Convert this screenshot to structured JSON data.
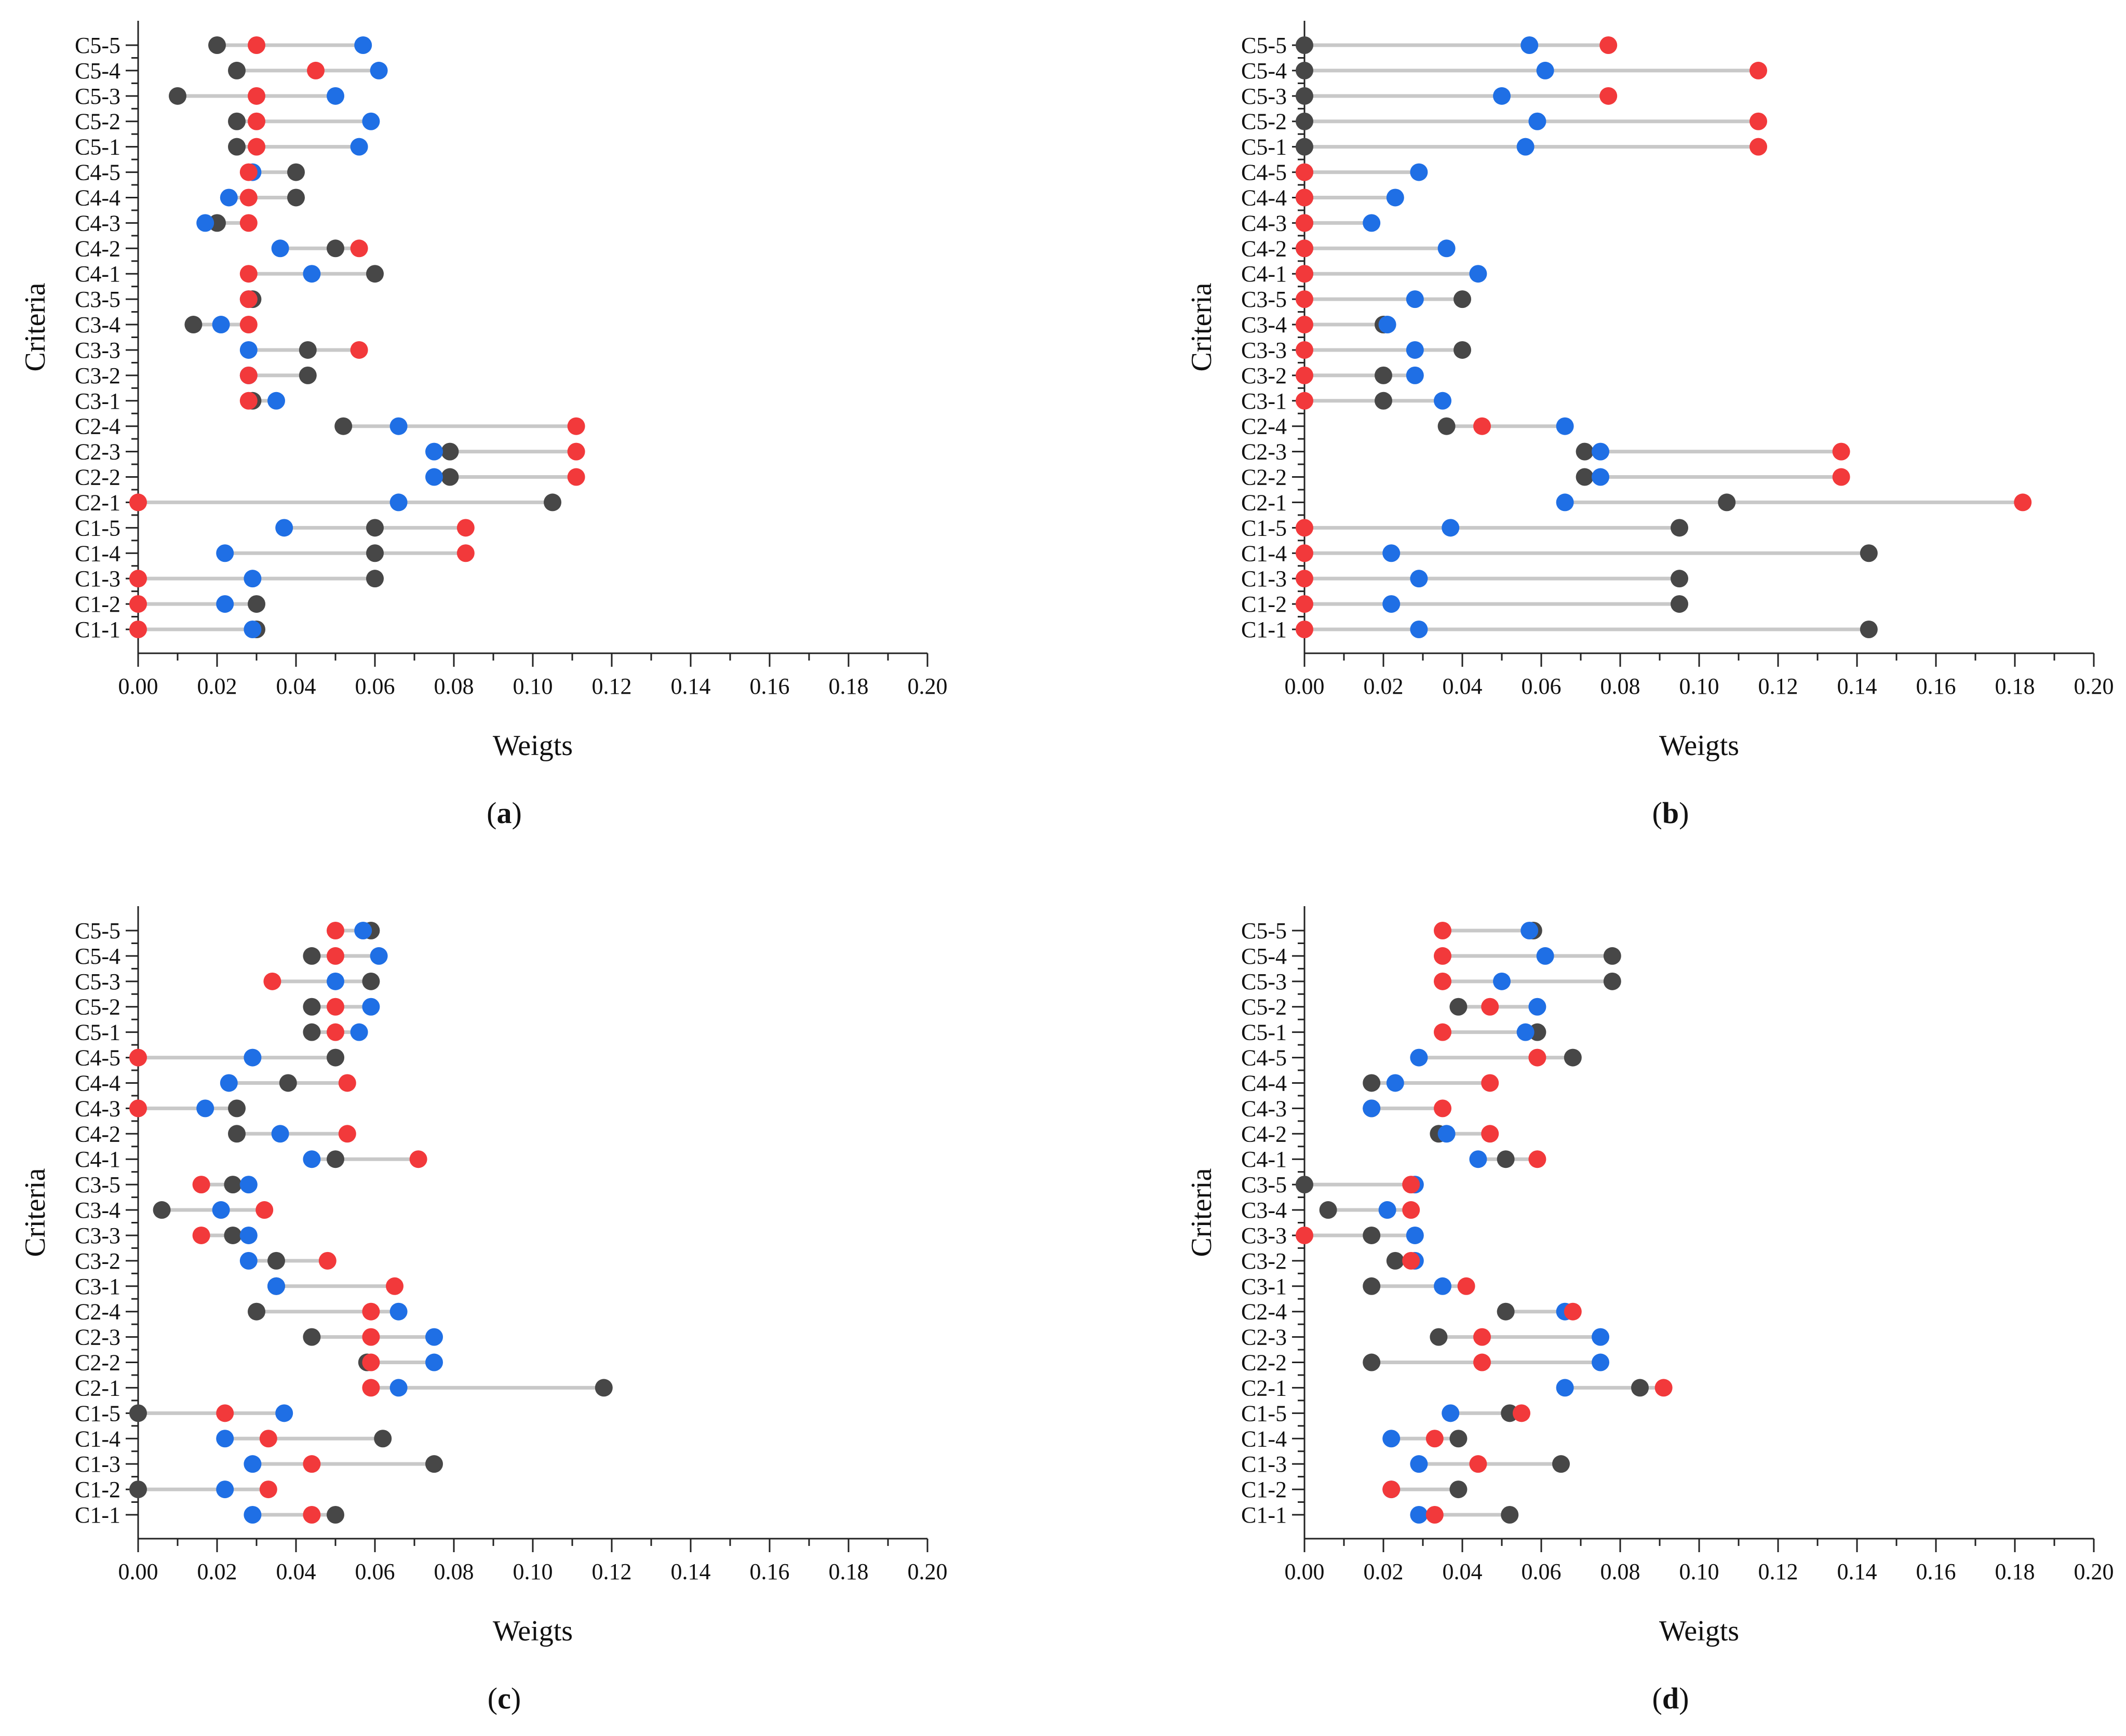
{
  "chart_data": [
    {
      "type": "dumbbell",
      "panel": "a",
      "caption_open": "(",
      "caption_letter": "a",
      "caption_close": ")",
      "xlabel": "Weigts",
      "ylabel": "Criteria",
      "xlim": [
        0,
        0.2
      ],
      "xticks": [
        "0.00",
        "0.02",
        "0.04",
        "0.06",
        "0.08",
        "0.10",
        "0.12",
        "0.14",
        "0.16",
        "0.18",
        "0.20"
      ],
      "categories": [
        "C1-1",
        "C1-2",
        "C1-3",
        "C1-4",
        "C1-5",
        "C2-1",
        "C2-2",
        "C2-3",
        "C2-4",
        "C3-1",
        "C3-2",
        "C3-3",
        "C3-4",
        "C3-5",
        "C4-1",
        "C4-2",
        "C4-3",
        "C4-4",
        "C4-5",
        "C5-1",
        "C5-2",
        "C5-3",
        "C5-4",
        "C5-5"
      ],
      "series": [
        {
          "name": "dark",
          "color": "#474747",
          "values": [
            0.03,
            0.03,
            0.06,
            0.06,
            0.06,
            0.105,
            0.079,
            0.079,
            0.052,
            0.029,
            0.043,
            0.043,
            0.014,
            0.029,
            0.06,
            0.05,
            0.02,
            0.04,
            0.04,
            0.025,
            0.025,
            0.01,
            0.025,
            0.02
          ]
        },
        {
          "name": "blue",
          "color": "#1f6fe5",
          "values": [
            0.029,
            0.022,
            0.029,
            0.022,
            0.037,
            0.066,
            0.075,
            0.075,
            0.066,
            0.035,
            0.028,
            0.028,
            0.021,
            0.028,
            0.044,
            0.036,
            0.017,
            0.023,
            0.029,
            0.056,
            0.059,
            0.05,
            0.061,
            0.057
          ]
        },
        {
          "name": "red",
          "color": "#f2393b",
          "values": [
            0.0,
            0.0,
            0.0,
            0.083,
            0.083,
            0.0,
            0.111,
            0.111,
            0.111,
            0.028,
            0.028,
            0.056,
            0.028,
            0.028,
            0.028,
            0.056,
            0.028,
            0.028,
            0.028,
            0.03,
            0.03,
            0.03,
            0.045,
            0.03
          ]
        }
      ]
    },
    {
      "type": "dumbbell",
      "panel": "b",
      "caption_open": "(",
      "caption_letter": "b",
      "caption_close": ")",
      "xlabel": "Weigts",
      "ylabel": "Criteria",
      "xlim": [
        0,
        0.2
      ],
      "xticks": [
        "0.00",
        "0.02",
        "0.04",
        "0.06",
        "0.08",
        "0.10",
        "0.12",
        "0.14",
        "0.16",
        "0.18",
        "0.20"
      ],
      "categories": [
        "C1-1",
        "C1-2",
        "C1-3",
        "C1-4",
        "C1-5",
        "C2-1",
        "C2-2",
        "C2-3",
        "C2-4",
        "C3-1",
        "C3-2",
        "C3-3",
        "C3-4",
        "C3-5",
        "C4-1",
        "C4-2",
        "C4-3",
        "C4-4",
        "C4-5",
        "C5-1",
        "C5-2",
        "C5-3",
        "C5-4",
        "C5-5"
      ],
      "series": [
        {
          "name": "dark",
          "color": "#474747",
          "values": [
            0.143,
            0.095,
            0.095,
            0.143,
            0.095,
            0.107,
            0.071,
            0.071,
            0.036,
            0.02,
            0.02,
            0.04,
            0.02,
            0.04,
            0.0,
            0.0,
            0.0,
            0.0,
            0.0,
            0.0,
            0.0,
            0.0,
            0.0,
            0.0
          ]
        },
        {
          "name": "blue",
          "color": "#1f6fe5",
          "values": [
            0.029,
            0.022,
            0.029,
            0.022,
            0.037,
            0.066,
            0.075,
            0.075,
            0.066,
            0.035,
            0.028,
            0.028,
            0.021,
            0.028,
            0.044,
            0.036,
            0.017,
            0.023,
            0.029,
            0.056,
            0.059,
            0.05,
            0.061,
            0.057
          ]
        },
        {
          "name": "red",
          "color": "#f2393b",
          "values": [
            0.0,
            0.0,
            0.0,
            0.0,
            0.0,
            0.182,
            0.136,
            0.136,
            0.045,
            0.0,
            0.0,
            0.0,
            0.0,
            0.0,
            0.0,
            0.0,
            0.0,
            0.0,
            0.0,
            0.115,
            0.115,
            0.077,
            0.115,
            0.077
          ]
        }
      ]
    },
    {
      "type": "dumbbell",
      "panel": "c",
      "caption_open": "(",
      "caption_letter": "c",
      "caption_close": ")",
      "xlabel": "Weigts",
      "ylabel": "Criteria",
      "xlim": [
        0,
        0.2
      ],
      "xticks": [
        "0.00",
        "0.02",
        "0.04",
        "0.06",
        "0.08",
        "0.10",
        "0.12",
        "0.14",
        "0.16",
        "0.18",
        "0.20"
      ],
      "categories": [
        "C1-1",
        "C1-2",
        "C1-3",
        "C1-4",
        "C1-5",
        "C2-1",
        "C2-2",
        "C2-3",
        "C2-4",
        "C3-1",
        "C3-2",
        "C3-3",
        "C3-4",
        "C3-5",
        "C4-1",
        "C4-2",
        "C4-3",
        "C4-4",
        "C4-5",
        "C5-1",
        "C5-2",
        "C5-3",
        "C5-4",
        "C5-5"
      ],
      "series": [
        {
          "name": "dark",
          "color": "#474747",
          "values": [
            0.05,
            0.0,
            0.075,
            0.062,
            0.0,
            0.118,
            0.058,
            0.044,
            0.03,
            0.035,
            0.035,
            0.024,
            0.006,
            0.024,
            0.05,
            0.025,
            0.025,
            0.038,
            0.05,
            0.044,
            0.044,
            0.059,
            0.044,
            0.059
          ]
        },
        {
          "name": "blue",
          "color": "#1f6fe5",
          "values": [
            0.029,
            0.022,
            0.029,
            0.022,
            0.037,
            0.066,
            0.075,
            0.075,
            0.066,
            0.035,
            0.028,
            0.028,
            0.021,
            0.028,
            0.044,
            0.036,
            0.017,
            0.023,
            0.029,
            0.056,
            0.059,
            0.05,
            0.061,
            0.057
          ]
        },
        {
          "name": "red",
          "color": "#f2393b",
          "values": [
            0.044,
            0.033,
            0.044,
            0.033,
            0.022,
            0.059,
            0.059,
            0.059,
            0.059,
            0.065,
            0.048,
            0.016,
            0.032,
            0.016,
            0.071,
            0.053,
            0.0,
            0.053,
            0.0,
            0.05,
            0.05,
            0.034,
            0.05,
            0.05
          ]
        }
      ]
    },
    {
      "type": "dumbbell",
      "panel": "d",
      "caption_open": "(",
      "caption_letter": "d",
      "caption_close": ")",
      "xlabel": "Weigts",
      "ylabel": "Criteria",
      "xlim": [
        0,
        0.2
      ],
      "xticks": [
        "0.00",
        "0.02",
        "0.04",
        "0.06",
        "0.08",
        "0.10",
        "0.12",
        "0.14",
        "0.16",
        "0.18",
        "0.20"
      ],
      "categories": [
        "C1-1",
        "C1-2",
        "C1-3",
        "C1-4",
        "C1-5",
        "C2-1",
        "C2-2",
        "C2-3",
        "C2-4",
        "C3-1",
        "C3-2",
        "C3-3",
        "C3-4",
        "C3-5",
        "C4-1",
        "C4-2",
        "C4-3",
        "C4-4",
        "C4-5",
        "C5-1",
        "C5-2",
        "C5-3",
        "C5-4",
        "C5-5"
      ],
      "series": [
        {
          "name": "dark",
          "color": "#474747",
          "values": [
            0.052,
            0.039,
            0.065,
            0.039,
            0.052,
            0.085,
            0.017,
            0.034,
            0.051,
            0.017,
            0.023,
            0.017,
            0.006,
            0.0,
            0.051,
            0.034,
            0.017,
            0.017,
            0.068,
            0.059,
            0.039,
            0.078,
            0.078,
            0.058
          ]
        },
        {
          "name": "blue",
          "color": "#1f6fe5",
          "values": [
            0.029,
            0.022,
            0.029,
            0.022,
            0.037,
            0.066,
            0.075,
            0.075,
            0.066,
            0.035,
            0.028,
            0.028,
            0.021,
            0.028,
            0.044,
            0.036,
            0.017,
            0.023,
            0.029,
            0.056,
            0.059,
            0.05,
            0.061,
            0.057
          ]
        },
        {
          "name": "red",
          "color": "#f2393b",
          "values": [
            0.033,
            0.022,
            0.044,
            0.033,
            0.055,
            0.091,
            0.045,
            0.045,
            0.068,
            0.041,
            0.027,
            0.0,
            0.027,
            0.027,
            0.059,
            0.047,
            0.035,
            0.047,
            0.059,
            0.035,
            0.047,
            0.035,
            0.035,
            0.035
          ]
        }
      ]
    }
  ]
}
